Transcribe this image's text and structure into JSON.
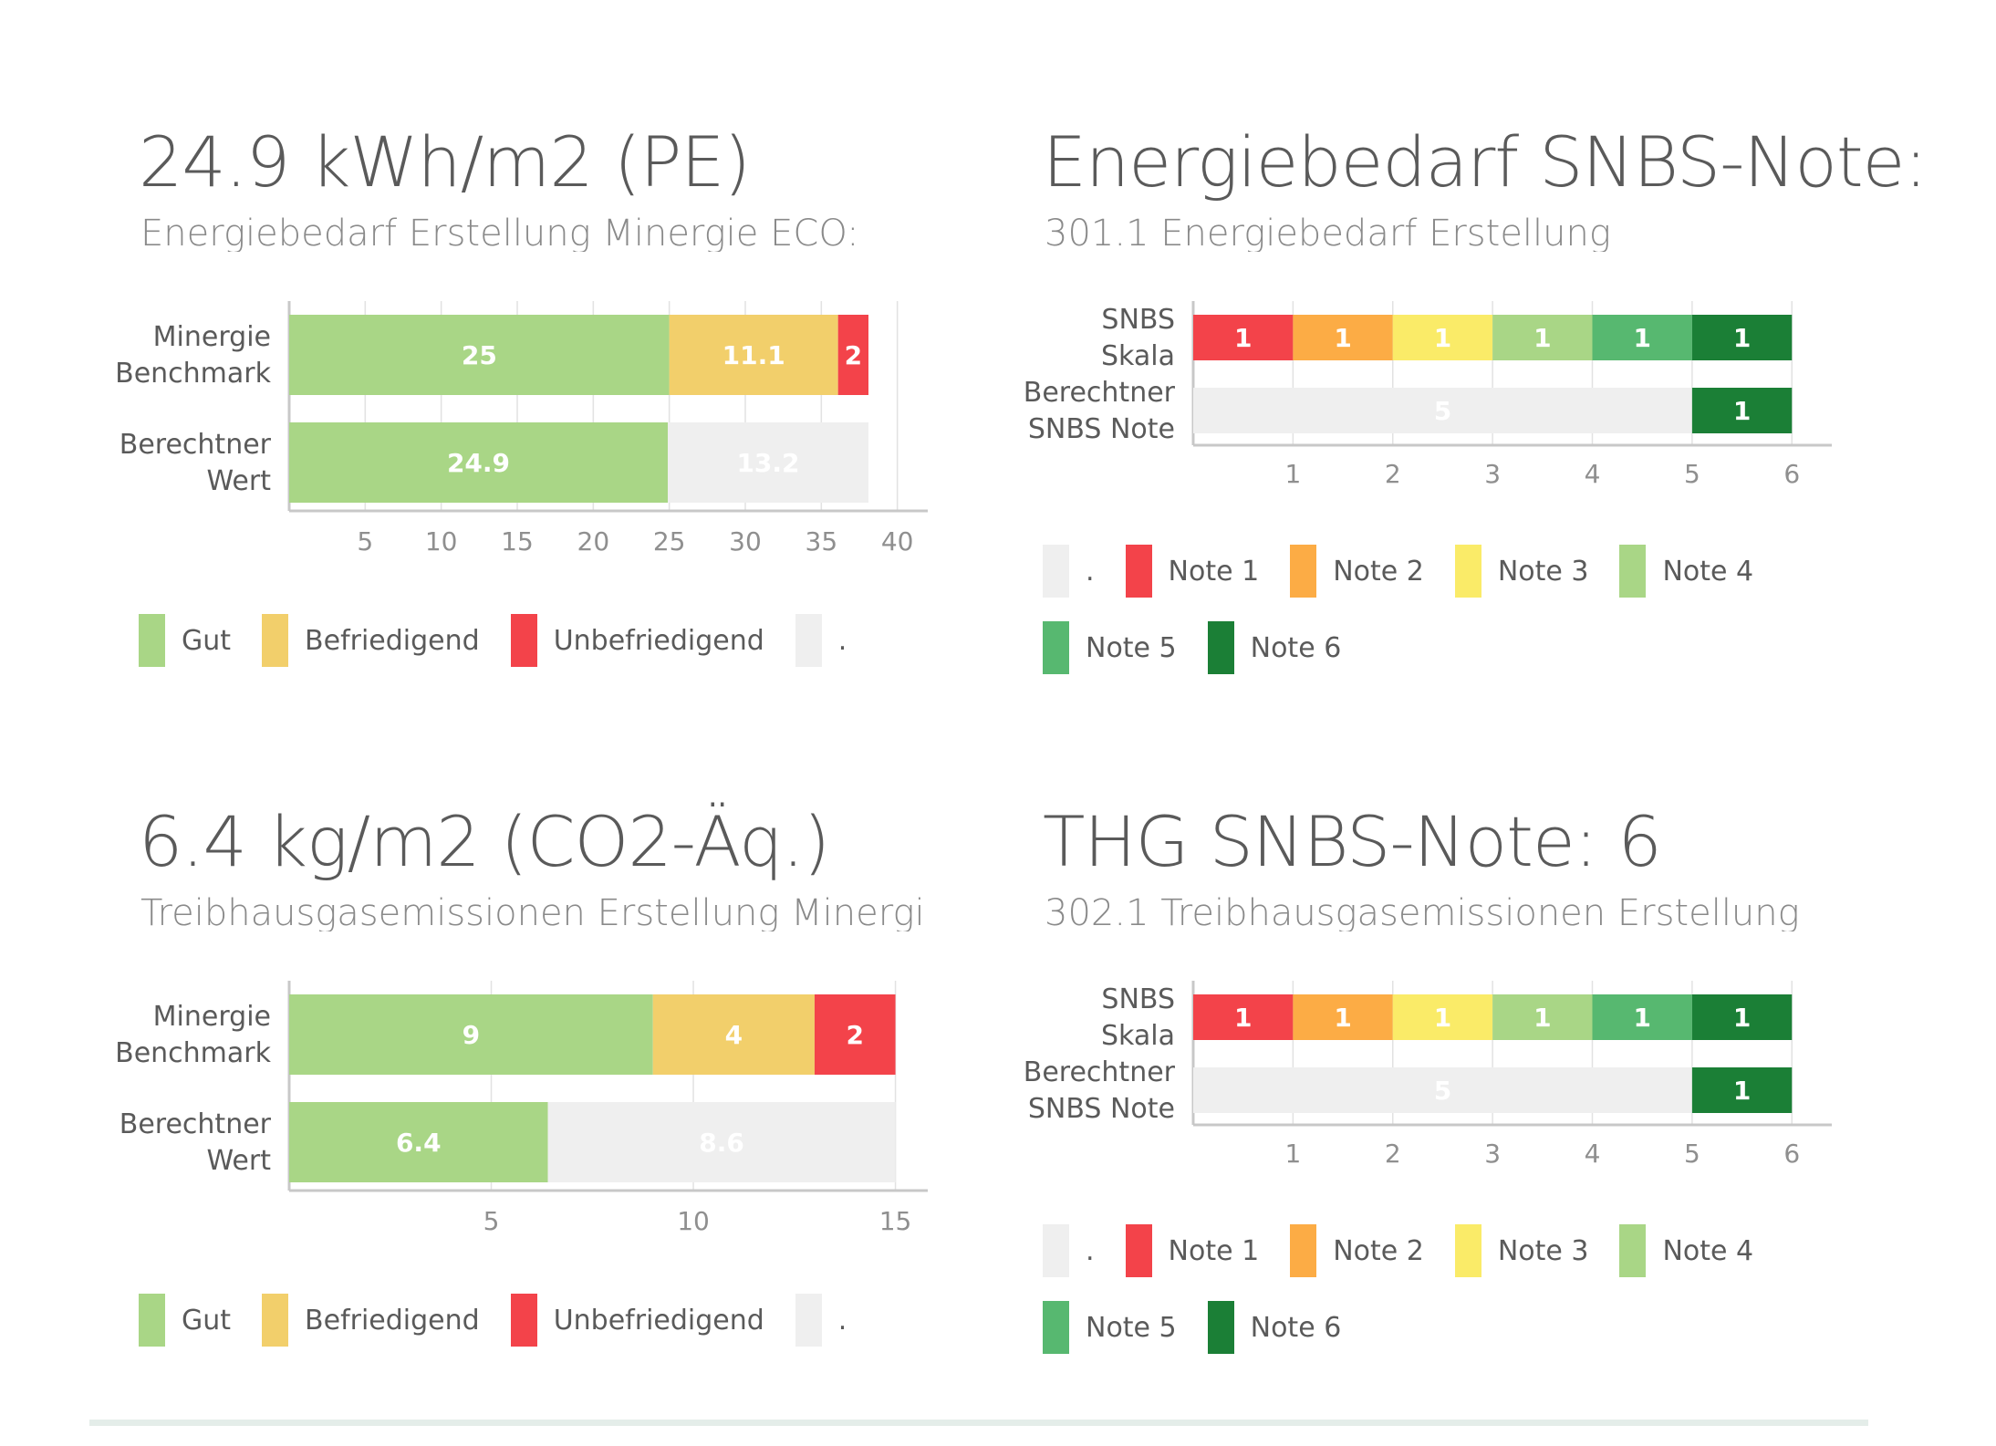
{
  "panels": [
    {
      "id": "energy-minergie",
      "title": "24.9 kWh/m2 (PE)",
      "subtitle": "Energiebedarf Erstellung Minergie ECO:",
      "legend": [
        {
          "label": "Gut",
          "color": "#a9d686"
        },
        {
          "label": "Befriedigend",
          "color": "#f2cf6b"
        },
        {
          "label": "Unbefriedigend",
          "color": "#f3434a"
        },
        {
          "label": ".",
          "color": "#efefef"
        }
      ],
      "chart_data": {
        "type": "bar",
        "orientation": "horizontal",
        "stacked": true,
        "categories": [
          [
            "Minergie",
            "Benchmark"
          ],
          [
            "Berechtner",
            "Wert"
          ]
        ],
        "series": [
          {
            "name": "Gut",
            "color": "#a9d686",
            "values": [
              25,
              24.9
            ]
          },
          {
            "name": "Befriedigend",
            "color": "#f2cf6b",
            "values": [
              11.1,
              null
            ]
          },
          {
            "name": "Unbefriedigend",
            "color": "#f3434a",
            "values": [
              2,
              null
            ]
          },
          {
            "name": ".",
            "color": "#efefef",
            "values": [
              null,
              13.2
            ]
          }
        ],
        "xlim": [
          0,
          42
        ],
        "xticks": [
          5,
          10,
          15,
          20,
          25,
          30,
          35,
          40
        ],
        "legend_position": "bottom-left"
      }
    },
    {
      "id": "energy-snbs",
      "title": "Energiebedarf SNBS-Note:",
      "subtitle": "301.1 Energiebedarf Erstellung",
      "legend": [
        {
          "label": ".",
          "color": "#efefef"
        },
        {
          "label": "Note 1",
          "color": "#f3434a"
        },
        {
          "label": "Note 2",
          "color": "#fcac45"
        },
        {
          "label": "Note 3",
          "color": "#faeb68"
        },
        {
          "label": "Note 4",
          "color": "#a9d686"
        },
        {
          "label": "Note 5",
          "color": "#57b870"
        },
        {
          "label": "Note 6",
          "color": "#1b7f36"
        }
      ],
      "chart_data": {
        "type": "bar",
        "orientation": "horizontal",
        "stacked": true,
        "categories": [
          [
            "SNBS",
            "Skala"
          ],
          [
            "Berechtner",
            "SNBS Note"
          ]
        ],
        "series": [
          {
            "name": ".",
            "color": "#efefef",
            "values": [
              null,
              5
            ]
          },
          {
            "name": "Note 1",
            "color": "#f3434a",
            "values": [
              1,
              null
            ]
          },
          {
            "name": "Note 2",
            "color": "#fcac45",
            "values": [
              1,
              null
            ]
          },
          {
            "name": "Note 3",
            "color": "#faeb68",
            "values": [
              1,
              null
            ]
          },
          {
            "name": "Note 4",
            "color": "#a9d686",
            "values": [
              1,
              null
            ]
          },
          {
            "name": "Note 5",
            "color": "#57b870",
            "values": [
              1,
              null
            ]
          },
          {
            "name": "Note 6",
            "color": "#1b7f36",
            "values": [
              1,
              1
            ]
          }
        ],
        "xlim": [
          0,
          6.4
        ],
        "xticks": [
          1,
          2,
          3,
          4,
          5,
          6
        ],
        "legend_position": "bottom-left"
      }
    },
    {
      "id": "ghg-minergie",
      "title": "6.4 kg/m2 (CO2-Äq.)",
      "subtitle": "Treibhausgasemissionen Erstellung Minergie ECO:",
      "legend": [
        {
          "label": "Gut",
          "color": "#a9d686"
        },
        {
          "label": "Befriedigend",
          "color": "#f2cf6b"
        },
        {
          "label": "Unbefriedigend",
          "color": "#f3434a"
        },
        {
          "label": ".",
          "color": "#efefef"
        }
      ],
      "chart_data": {
        "type": "bar",
        "orientation": "horizontal",
        "stacked": true,
        "categories": [
          [
            "Minergie",
            "Benchmark"
          ],
          [
            "Berechtner",
            "Wert"
          ]
        ],
        "series": [
          {
            "name": "Gut",
            "color": "#a9d686",
            "values": [
              9,
              6.4
            ]
          },
          {
            "name": "Befriedigend",
            "color": "#f2cf6b",
            "values": [
              4,
              null
            ]
          },
          {
            "name": "Unbefriedigend",
            "color": "#f3434a",
            "values": [
              2,
              null
            ]
          },
          {
            "name": ".",
            "color": "#efefef",
            "values": [
              null,
              8.6
            ]
          }
        ],
        "xlim": [
          0,
          15.8
        ],
        "xticks": [
          5,
          10,
          15
        ],
        "legend_position": "bottom-left"
      }
    },
    {
      "id": "ghg-snbs",
      "title": "THG SNBS-Note: 6",
      "subtitle": "302.1 Treibhausgasemissionen Erstellung",
      "legend": [
        {
          "label": ".",
          "color": "#efefef"
        },
        {
          "label": "Note 1",
          "color": "#f3434a"
        },
        {
          "label": "Note 2",
          "color": "#fcac45"
        },
        {
          "label": "Note 3",
          "color": "#faeb68"
        },
        {
          "label": "Note 4",
          "color": "#a9d686"
        },
        {
          "label": "Note 5",
          "color": "#57b870"
        },
        {
          "label": "Note 6",
          "color": "#1b7f36"
        }
      ],
      "chart_data": {
        "type": "bar",
        "orientation": "horizontal",
        "stacked": true,
        "categories": [
          [
            "SNBS",
            "Skala"
          ],
          [
            "Berechtner",
            "SNBS Note"
          ]
        ],
        "series": [
          {
            "name": ".",
            "color": "#efefef",
            "values": [
              null,
              5
            ]
          },
          {
            "name": "Note 1",
            "color": "#f3434a",
            "values": [
              1,
              null
            ]
          },
          {
            "name": "Note 2",
            "color": "#fcac45",
            "values": [
              1,
              null
            ]
          },
          {
            "name": "Note 3",
            "color": "#faeb68",
            "values": [
              1,
              null
            ]
          },
          {
            "name": "Note 4",
            "color": "#a9d686",
            "values": [
              1,
              null
            ]
          },
          {
            "name": "Note 5",
            "color": "#57b870",
            "values": [
              1,
              null
            ]
          },
          {
            "name": "Note 6",
            "color": "#1b7f36",
            "values": [
              1,
              1
            ]
          }
        ],
        "xlim": [
          0,
          6.4
        ],
        "xticks": [
          1,
          2,
          3,
          4,
          5,
          6
        ],
        "legend_position": "bottom-left"
      }
    }
  ]
}
